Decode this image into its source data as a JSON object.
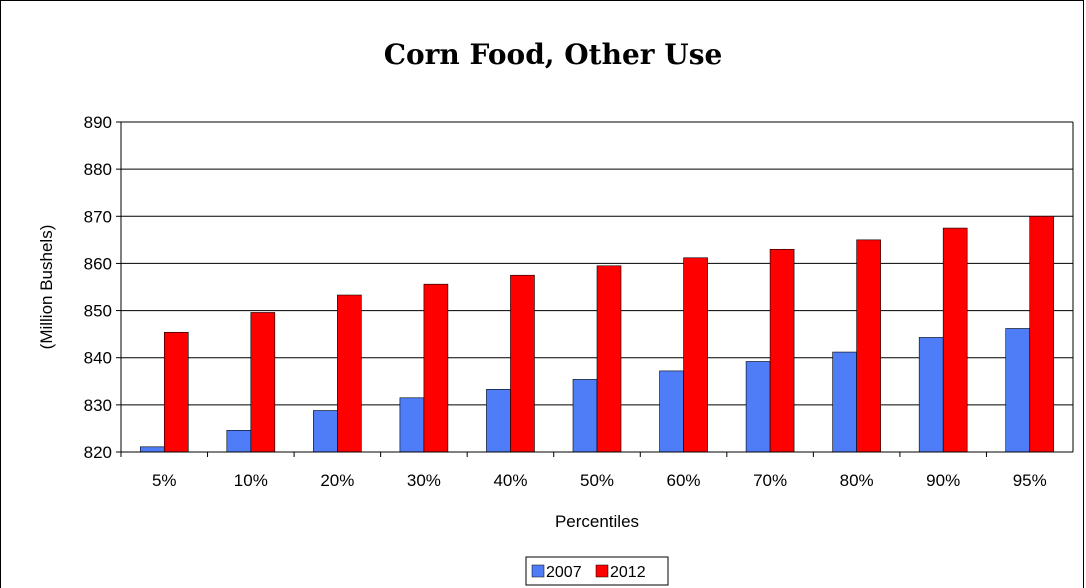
{
  "chart_data": {
    "type": "bar",
    "title": "Corn Food, Other Use",
    "xlabel": "Percentiles",
    "ylabel": "(Million Bushels)",
    "categories": [
      "5%",
      "10%",
      "20%",
      "30%",
      "40%",
      "50%",
      "60%",
      "70%",
      "80%",
      "90%",
      "95%"
    ],
    "series": [
      {
        "name": "2007",
        "color": "#4f7df7",
        "values": [
          821.1,
          824.6,
          828.8,
          831.5,
          833.3,
          835.4,
          837.2,
          839.2,
          841.2,
          844.3,
          846.2
        ]
      },
      {
        "name": "2012",
        "color": "#ff0000",
        "values": [
          845.4,
          849.6,
          853.3,
          855.6,
          857.5,
          859.5,
          861.2,
          863.0,
          865.0,
          867.5,
          870.0
        ]
      }
    ],
    "ylim": [
      820,
      890
    ],
    "yticks": [
      820,
      830,
      840,
      850,
      860,
      870,
      880,
      890
    ],
    "grid": true,
    "legend": "bottom-center"
  }
}
